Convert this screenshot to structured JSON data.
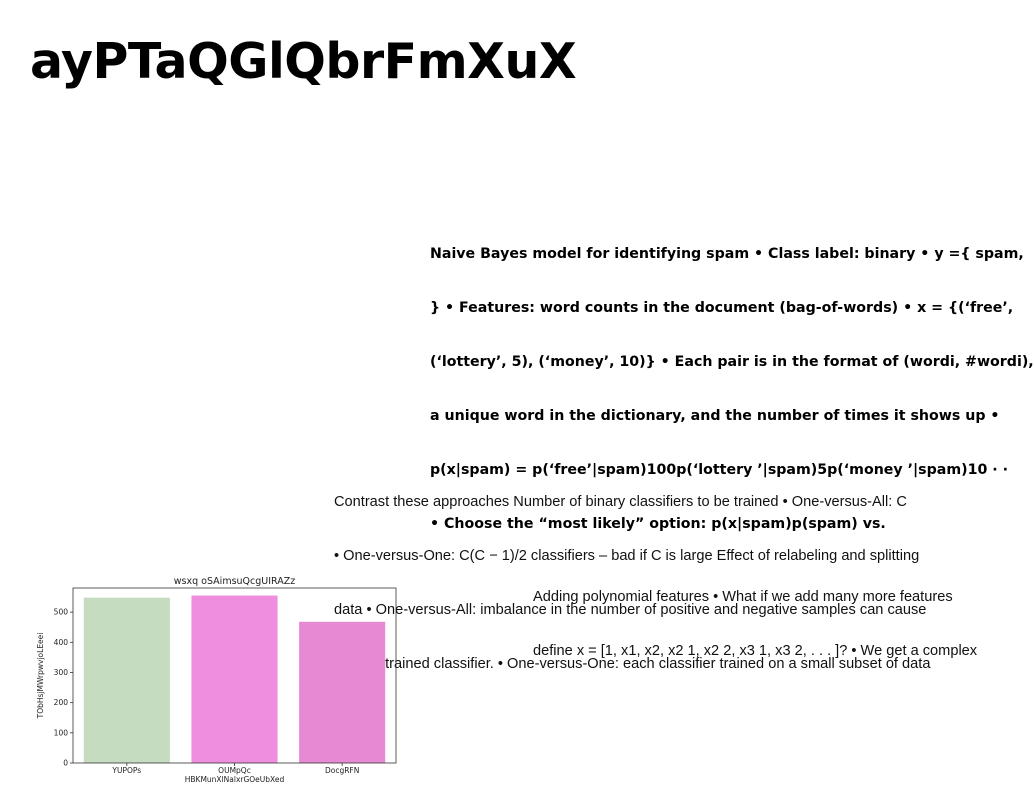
{
  "title": "ayPTaQGlQbrFmXuX",
  "naive_bayes_text": {
    "lines": [
      "Naive Bayes model for identifying spam • Class label: binary • y ={ spam,",
      "} • Features: word counts in the document (bag-of-words) • x = {(‘free’,",
      "(‘lottery’, 5), (‘money’, 10)} • Each pair is in the format of (wordi, #wordi),",
      "a unique word in the dictionary, and the number of times it shows up •",
      "p(x|spam) = p(‘free’|spam)100p(‘lottery ’|spam)5p(‘money ’|spam)10 · ·",
      "• Choose the “most likely” option: p(x|spam)p(spam) vs."
    ]
  },
  "contrast_text": {
    "lines": [
      "Contrast these approaches Number of binary classifiers to be trained • One-versus-All: C",
      "• One-versus-One: C(C − 1)/2 classifiers – bad if C is large Effect of relabeling and splitting",
      "data • One-versus-All: imbalance in the number of positive and negative samples can cause",
      "in each trained classifier. • One-versus-One: each classifier trained on a small subset of data"
    ]
  },
  "polynomial_text": {
    "lines": [
      "Adding polynomial features • What if we add many more features",
      "define x = [1, x1, x2, x2 1, x2 2, x3 1, x3 2, . . . ]? • We get a complex"
    ]
  },
  "chart_data": {
    "type": "bar",
    "title": "wsxq oSAimsuQcgUIRAZz",
    "xlabel": "HBKMunXlNalxrGOeUbXed",
    "ylabel": "TObHsjMWrpwvjoLEeei",
    "categories": [
      "YUPOPs",
      "OUMpQc",
      "DocgRFN"
    ],
    "values": [
      548,
      555,
      468
    ],
    "colors": [
      "#c5dcc0",
      "#ef8edf",
      "#e68bd3"
    ],
    "ylim": [
      0,
      580
    ],
    "yticks": [
      0,
      100,
      200,
      300,
      400,
      500
    ],
    "grid": false
  }
}
